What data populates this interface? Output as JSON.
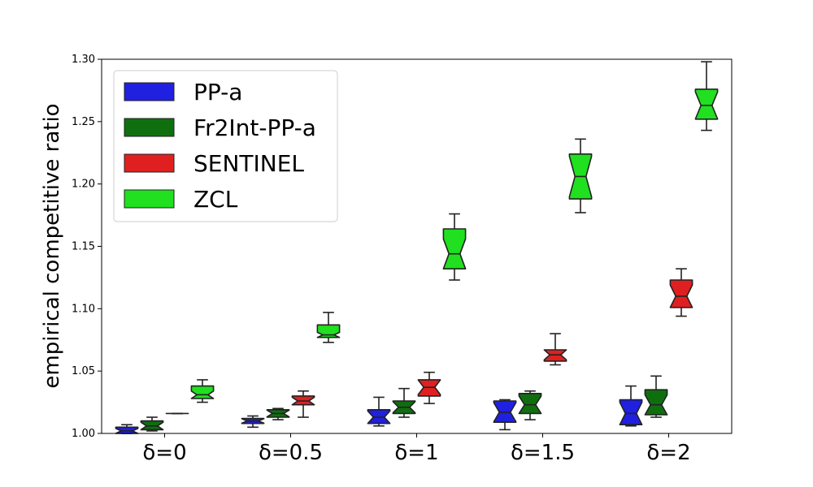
{
  "chart_data": {
    "type": "boxplot",
    "ylabel": "empirical competitive ratio",
    "xlabel": "",
    "title": "",
    "ylim": [
      1.0,
      1.3
    ],
    "yticks": [
      "1.00",
      "1.05",
      "1.10",
      "1.15",
      "1.20",
      "1.25",
      "1.30"
    ],
    "categories": [
      "δ=0",
      "δ=0.5",
      "δ=1",
      "δ=1.5",
      "δ=2"
    ],
    "notched": true,
    "grid": false,
    "legend_position": "top-left",
    "series": [
      {
        "name": "PP-a",
        "color": "#2020e0",
        "boxes": [
          {
            "whislo": 1.0,
            "q1": 1.0,
            "med": 1.002,
            "q3": 1.005,
            "whishi": 1.007
          },
          {
            "whislo": 1.005,
            "q1": 1.008,
            "med": 1.01,
            "q3": 1.012,
            "whishi": 1.014
          },
          {
            "whislo": 1.006,
            "q1": 1.008,
            "med": 1.013,
            "q3": 1.019,
            "whishi": 1.029
          },
          {
            "whislo": 1.003,
            "q1": 1.009,
            "med": 1.017,
            "q3": 1.026,
            "whishi": 1.027
          },
          {
            "whislo": 1.006,
            "q1": 1.007,
            "med": 1.016,
            "q3": 1.027,
            "whishi": 1.038
          }
        ]
      },
      {
        "name": "Fr2Int-PP-a",
        "color": "#0f6f0f",
        "boxes": [
          {
            "whislo": 1.002,
            "q1": 1.003,
            "med": 1.006,
            "q3": 1.01,
            "whishi": 1.013
          },
          {
            "whislo": 1.011,
            "q1": 1.013,
            "med": 1.016,
            "q3": 1.019,
            "whishi": 1.02
          },
          {
            "whislo": 1.013,
            "q1": 1.016,
            "med": 1.021,
            "q3": 1.026,
            "whishi": 1.036
          },
          {
            "whislo": 1.011,
            "q1": 1.016,
            "med": 1.023,
            "q3": 1.032,
            "whishi": 1.034
          },
          {
            "whislo": 1.013,
            "q1": 1.015,
            "med": 1.023,
            "q3": 1.035,
            "whishi": 1.046
          }
        ]
      },
      {
        "name": "SENTINEL",
        "color": "#e02020",
        "boxes": [
          {
            "whislo": 1.016,
            "q1": 1.016,
            "med": 1.016,
            "q3": 1.016,
            "whishi": 1.016
          },
          {
            "whislo": 1.013,
            "q1": 1.023,
            "med": 1.026,
            "q3": 1.03,
            "whishi": 1.034
          },
          {
            "whislo": 1.024,
            "q1": 1.03,
            "med": 1.037,
            "q3": 1.043,
            "whishi": 1.049
          },
          {
            "whislo": 1.055,
            "q1": 1.058,
            "med": 1.063,
            "q3": 1.067,
            "whishi": 1.08
          },
          {
            "whislo": 1.094,
            "q1": 1.101,
            "med": 1.11,
            "q3": 1.123,
            "whishi": 1.132
          }
        ]
      },
      {
        "name": "ZCL",
        "color": "#20e020",
        "boxes": [
          {
            "whislo": 1.025,
            "q1": 1.028,
            "med": 1.031,
            "q3": 1.038,
            "whishi": 1.043
          },
          {
            "whislo": 1.073,
            "q1": 1.077,
            "med": 1.079,
            "q3": 1.087,
            "whishi": 1.097
          },
          {
            "whislo": 1.123,
            "q1": 1.132,
            "med": 1.144,
            "q3": 1.164,
            "whishi": 1.176
          },
          {
            "whislo": 1.177,
            "q1": 1.188,
            "med": 1.206,
            "q3": 1.224,
            "whishi": 1.236
          },
          {
            "whislo": 1.243,
            "q1": 1.252,
            "med": 1.263,
            "q3": 1.276,
            "whishi": 1.298
          }
        ]
      }
    ]
  }
}
